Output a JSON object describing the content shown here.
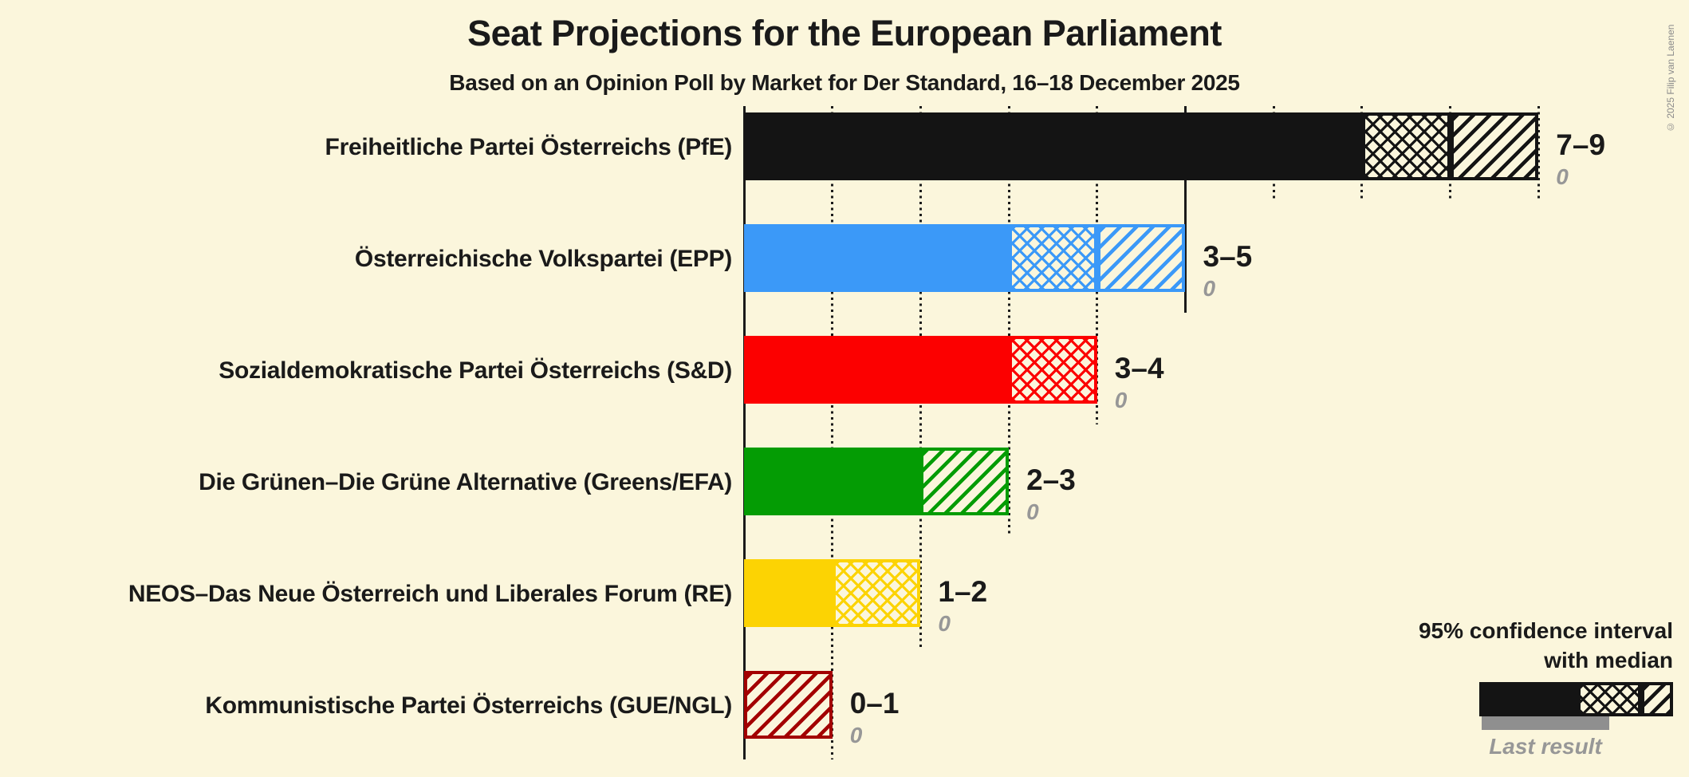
{
  "title": "Seat Projections for the European Parliament",
  "subtitle": "Based on an Opinion Poll by Market for Der Standard, 16–18 December 2025",
  "copyright": "© 2025 Filip van Laenen",
  "legend": {
    "ci_line1": "95% confidence interval",
    "ci_line2": "with median",
    "last_result_label": "Last result"
  },
  "colors": {
    "background": "#FBF6DC",
    "text": "#1A1A1A",
    "muted_text": "#979797",
    "copyright_text": "#8A8A8A",
    "last_result_bar": "#8F8F8F",
    "legend_sample": "#141414"
  },
  "chart_data": {
    "type": "bar",
    "orientation": "horizontal",
    "unit": "seats",
    "value_axis": {
      "min": 0,
      "max_gridline": 9,
      "minor_step": 1,
      "major_step": 5
    },
    "encoding_note": "solid fill = up to lower bound of 95% CI, crosshatch = lower bound to median, diagonal hatch = median to upper bound; gray bar/number = last result",
    "grid": "dotted minor gridlines every seat, solid major gridline every 5 seats",
    "parties": [
      {
        "label": "Freiheitliche Partei Österreichs (PfE)",
        "low": 7,
        "median": 8,
        "high": 9,
        "range_label": "7–9",
        "last_result": "0",
        "color": "#141414"
      },
      {
        "label": "Österreichische Volkspartei (EPP)",
        "low": 3,
        "median": 4,
        "high": 5,
        "range_label": "3–5",
        "last_result": "0",
        "color": "#3B99F8"
      },
      {
        "label": "Sozialdemokratische Partei Österreichs (S&D)",
        "low": 3,
        "median": 4,
        "high": 4,
        "range_label": "3–4",
        "last_result": "0",
        "color": "#FC0000"
      },
      {
        "label": "Die Grünen–Die Grüne Alternative (Greens/EFA)",
        "low": 2,
        "median": 2,
        "high": 3,
        "range_label": "2–3",
        "last_result": "0",
        "color": "#049C04"
      },
      {
        "label": "NEOS–Das Neue Österreich und Liberales Forum (RE)",
        "low": 1,
        "median": 2,
        "high": 2,
        "range_label": "1–2",
        "last_result": "0",
        "color": "#FCD303"
      },
      {
        "label": "Kommunistische Partei Österreichs (GUE/NGL)",
        "low": 0,
        "median": 0,
        "high": 1,
        "range_label": "0–1",
        "last_result": "0",
        "color": "#A30000"
      }
    ]
  }
}
